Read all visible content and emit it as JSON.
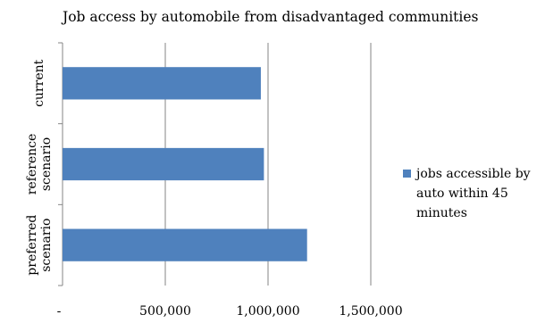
{
  "chart_data": {
    "type": "bar",
    "orientation": "horizontal",
    "title": "Job access by automobile from disadvantaged communities",
    "categories": [
      [
        "current"
      ],
      [
        "reference",
        "scenario"
      ],
      [
        "preferred",
        "scenario"
      ]
    ],
    "series": [
      {
        "name": "jobs accessible by auto within 45 minutes",
        "legend_lines": [
          "jobs accessible by",
          "auto within 45",
          "minutes"
        ],
        "values": [
          965000,
          980000,
          1190000
        ],
        "color": "#4F81BD"
      }
    ],
    "xlim": [
      0,
      1500000
    ],
    "xticks": [
      0,
      500000,
      1000000,
      1500000
    ],
    "xtick_labels": [
      "-",
      "500,000",
      "1,000,000",
      "1,500,000"
    ],
    "grid": true,
    "legend_position": "right"
  }
}
